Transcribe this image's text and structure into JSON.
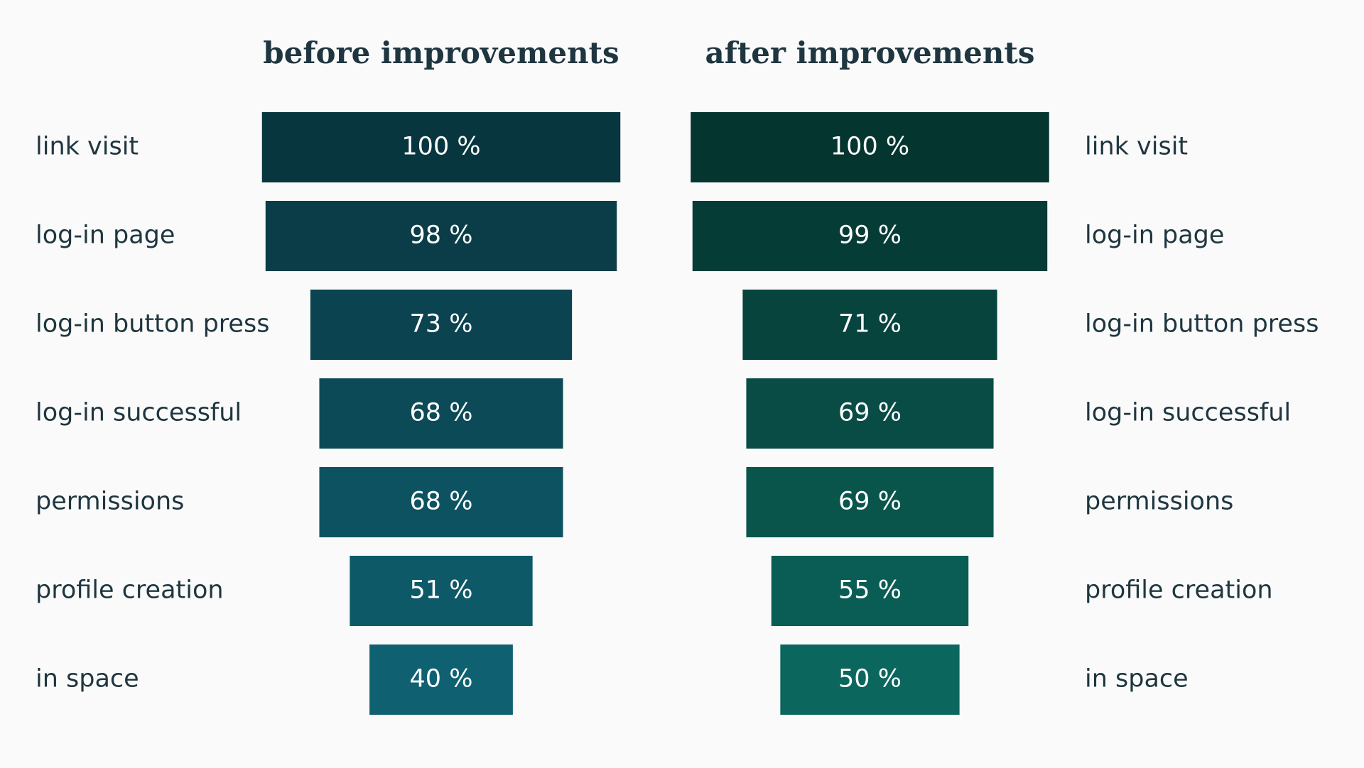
{
  "chart_data": [
    {
      "type": "funnel",
      "title": "before improvements",
      "label_position": "left",
      "categories": [
        "link visit",
        "log-in page",
        "log-in button press",
        "log-in successful",
        "permissions",
        "profile creation",
        "in space"
      ],
      "values": [
        100,
        98,
        73,
        68,
        68,
        51,
        40
      ],
      "value_labels": [
        "100 %",
        "98 %",
        "73 %",
        "68 %",
        "68 %",
        "51 %",
        "40 %"
      ],
      "colors": [
        "#08363f",
        "#0a3d48",
        "#0b4350",
        "#0c4a58",
        "#0d5261",
        "#0e5968",
        "#0f6172"
      ]
    },
    {
      "type": "funnel",
      "title": "after improvements",
      "label_position": "right",
      "categories": [
        "link visit",
        "log-in page",
        "log-in button press",
        "log-in successful",
        "permissions",
        "profile creation",
        "in space"
      ],
      "values": [
        100,
        99,
        71,
        69,
        69,
        55,
        50
      ],
      "value_labels": [
        "100 %",
        "99 %",
        "71 %",
        "69 %",
        "69 %",
        "55 %",
        "50 %"
      ],
      "colors": [
        "#05352f",
        "#063c36",
        "#07443d",
        "#084c45",
        "#09554c",
        "#0a5d54",
        "#0b665d"
      ]
    }
  ]
}
